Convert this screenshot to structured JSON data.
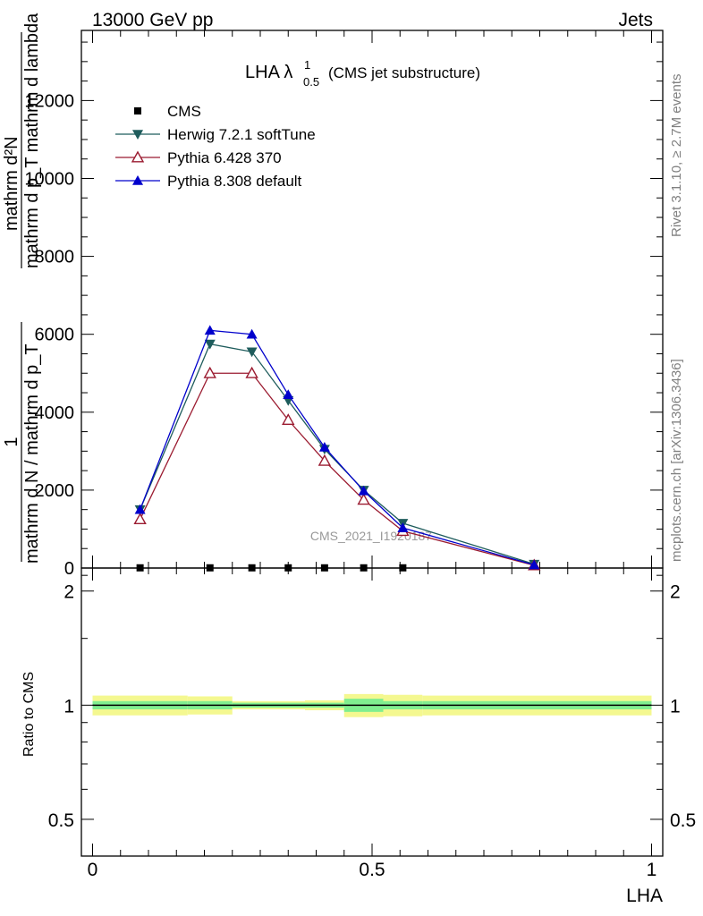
{
  "header": {
    "left": "13000 GeV pp",
    "right": "Jets"
  },
  "side_labels": {
    "rivet": "Rivet 3.1.10, ≥ 2.7M events",
    "mcplots": "mcplots.cern.ch [arXiv:1306.3436]"
  },
  "watermark": "CMS_2021_I1920187",
  "chart_data": [
    {
      "type": "line",
      "title": "LHA λ",
      "title_superscript": "1",
      "title_subscript": "0.5",
      "title_suffix": "(CMS jet substructure)",
      "ylabel_numerator": "mathrm d²N",
      "ylabel_denominator": "mathrm d p_T mathrm d lambda",
      "ylabel_prefix_numerator": "1",
      "ylabel_prefix_denominator": "mathrm d N / mathrm d p_T",
      "ylim": [
        0,
        13800
      ],
      "yticks": [
        0,
        2000,
        4000,
        6000,
        8000,
        10000,
        12000
      ],
      "ytick_labels": [
        "0",
        "2000",
        "4000",
        "6000",
        "8000",
        "10000",
        "12000"
      ],
      "x": [
        0.085,
        0.21,
        0.285,
        0.35,
        0.415,
        0.485,
        0.555,
        0.79
      ],
      "series": [
        {
          "name": "CMS",
          "color": "#000000",
          "marker": "square",
          "values": [
            5,
            5,
            5,
            5,
            5,
            5,
            5,
            null
          ]
        },
        {
          "name": "Herwig 7.2.1 softTune",
          "color": "#1e5c5c",
          "marker": "triangle-down",
          "values": [
            1500,
            5750,
            5550,
            4300,
            3050,
            2000,
            1150,
            100
          ]
        },
        {
          "name": "Pythia 6.428 370",
          "color": "#9b1b30",
          "marker": "triangle-up-open",
          "values": [
            1250,
            5000,
            5000,
            3800,
            2750,
            1750,
            950,
            70
          ]
        },
        {
          "name": "Pythia 8.308 default",
          "color": "#0000cc",
          "marker": "triangle-up",
          "values": [
            1500,
            6100,
            6000,
            4450,
            3100,
            1980,
            1030,
            80
          ]
        }
      ],
      "legend": "top-left"
    },
    {
      "type": "line",
      "ylabel": "Ratio to CMS",
      "xlabel": "LHA",
      "xlim": [
        -0.02,
        1.02
      ],
      "ylim": [
        0.4,
        2.3
      ],
      "yscale": "log",
      "yticks": [
        0.5,
        1,
        2
      ],
      "ytick_labels": [
        "0.5",
        "1",
        "2"
      ],
      "xticks": [
        0,
        0.5,
        1
      ],
      "xtick_labels": [
        "0",
        "0.5",
        "1"
      ],
      "reference": 1,
      "uncertainty_bands": [
        {
          "x0": 0.0,
          "x1": 0.17,
          "inner": 0.025,
          "outer": 0.06
        },
        {
          "x0": 0.17,
          "x1": 0.25,
          "inner": 0.025,
          "outer": 0.055
        },
        {
          "x0": 0.25,
          "x1": 0.32,
          "inner": 0.015,
          "outer": 0.025
        },
        {
          "x0": 0.32,
          "x1": 0.38,
          "inner": 0.015,
          "outer": 0.025
        },
        {
          "x0": 0.38,
          "x1": 0.45,
          "inner": 0.015,
          "outer": 0.03
        },
        {
          "x0": 0.45,
          "x1": 0.52,
          "inner": 0.04,
          "outer": 0.07
        },
        {
          "x0": 0.52,
          "x1": 0.59,
          "inner": 0.025,
          "outer": 0.065
        },
        {
          "x0": 0.59,
          "x1": 1.0,
          "inner": 0.025,
          "outer": 0.06
        }
      ],
      "band_colors": {
        "inner": "#80ee90",
        "outer": "#f4f890"
      }
    }
  ]
}
